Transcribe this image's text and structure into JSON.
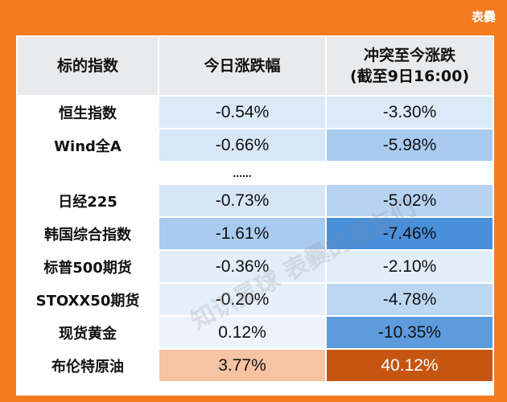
{
  "brand": "表爨",
  "headers": [
    "标的指数",
    "今日涨跌幅",
    "冲突至今涨跌\n(截至9日16:00)"
  ],
  "header_line1": "冲突至今涨跌",
  "header_line2": "(截至9日16:00)",
  "gap_text": "......",
  "rows": [
    {
      "name": "恒生指数",
      "today": "-0.54%",
      "since": "-3.30%",
      "today_bg": "#DCEAF8",
      "since_bg": "#DCEAF8",
      "since_color": "#111111",
      "today_color": "#111111"
    },
    {
      "name": "Wind全A",
      "today": "-0.66%",
      "since": "-5.98%",
      "today_bg": "#D8E7F7",
      "since_bg": "#A9CBEF",
      "since_color": "#111111",
      "today_color": "#111111"
    },
    {
      "name": "日经225",
      "today": "-0.73%",
      "since": "-5.02%",
      "today_bg": "#D6E6F7",
      "since_bg": "#B6D3F1",
      "since_color": "#111111",
      "today_color": "#111111"
    },
    {
      "name": "韩国综合指数",
      "today": "-1.61%",
      "since": "-7.46%",
      "today_bg": "#A9CBEF",
      "since_bg": "#4A8FDA",
      "since_color": "#111111",
      "today_color": "#111111"
    },
    {
      "name": "标普500期货",
      "today": "-0.36%",
      "since": "-2.10%",
      "today_bg": "#E1EDF9",
      "since_bg": "#E1EDF9",
      "since_color": "#111111",
      "today_color": "#111111"
    },
    {
      "name": "STOXX50期货",
      "today": "-0.20%",
      "since": "-4.78%",
      "today_bg": "#E6F0FA",
      "since_bg": "#BDD7F2",
      "since_color": "#111111",
      "today_color": "#111111"
    },
    {
      "name": "现货黄金",
      "today": "0.12%",
      "since": "-10.35%",
      "today_bg": "#EDF3FB",
      "since_bg": "#5E9BDD",
      "since_color": "#111111",
      "today_color": "#111111"
    },
    {
      "name": "布伦特原油",
      "today": "3.77%",
      "since": "40.12%",
      "today_bg": "#F6C3A3",
      "since_bg": "#C65512",
      "since_color": "#ffffff",
      "today_color": "#111111"
    }
  ],
  "watermark": "知识星球 表爨的朋友们"
}
